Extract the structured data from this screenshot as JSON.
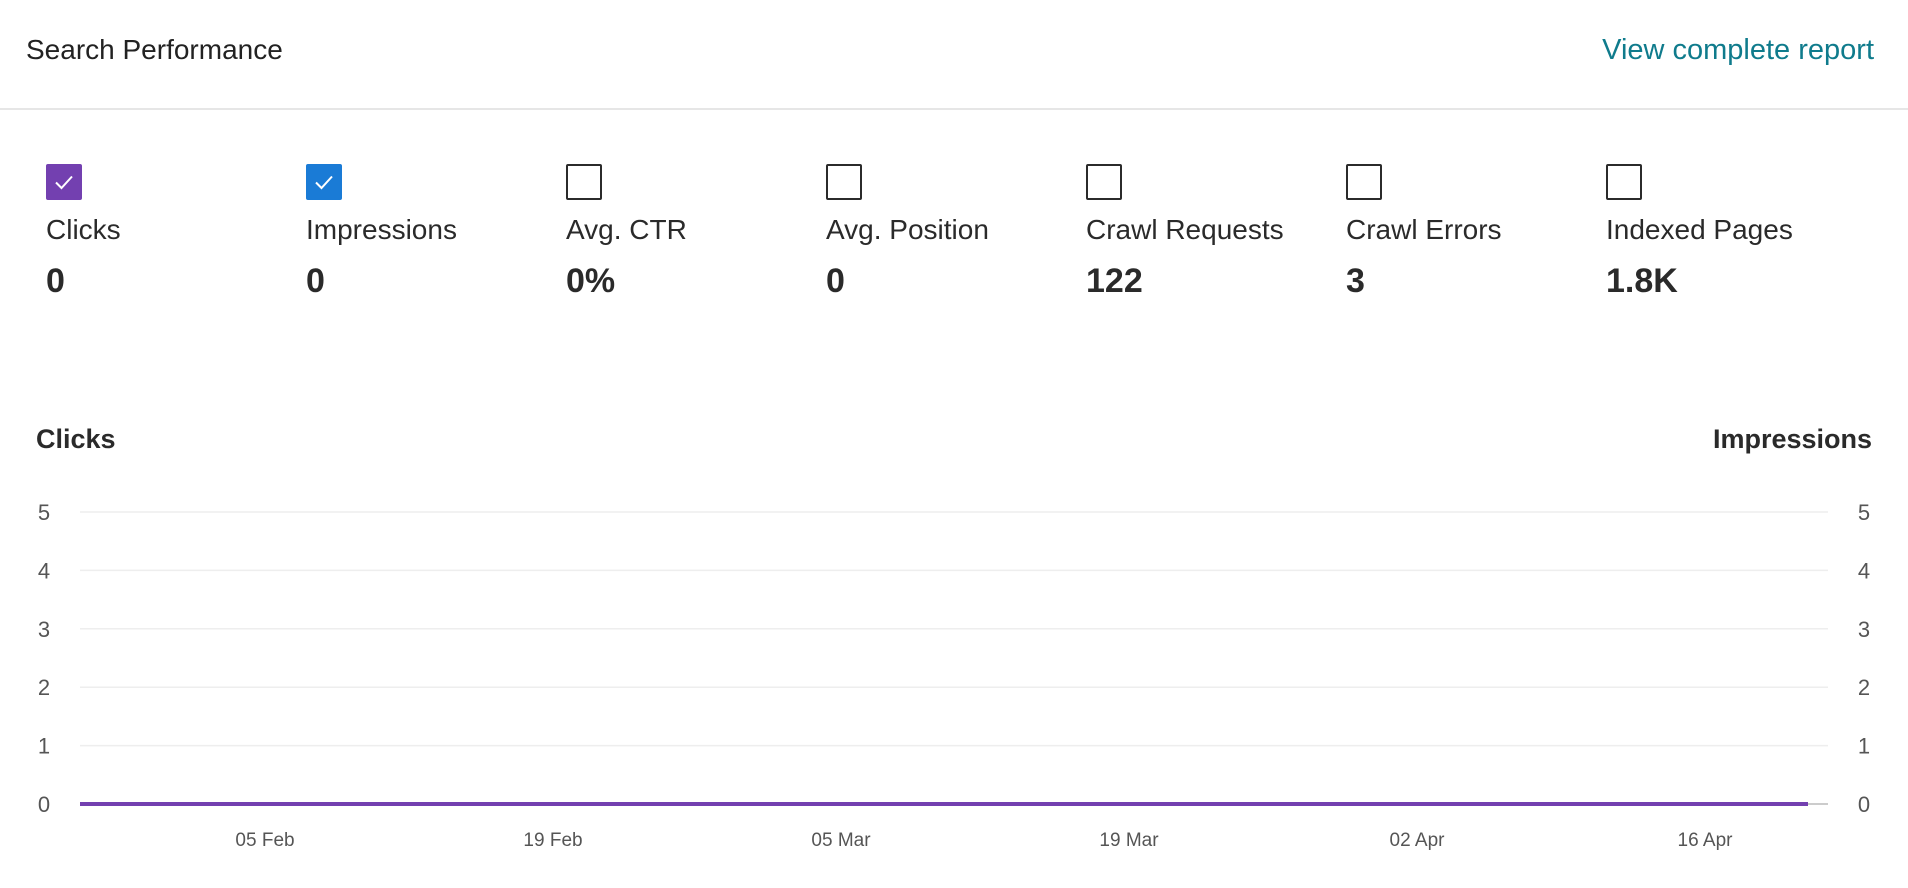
{
  "header": {
    "title": "Search Performance",
    "link_label": "View complete report"
  },
  "metrics": [
    {
      "label": "Clicks",
      "value": "0",
      "checked": true,
      "color": "#7340b0"
    },
    {
      "label": "Impressions",
      "value": "0",
      "checked": true,
      "color": "#1a7bd6"
    },
    {
      "label": "Avg. CTR",
      "value": "0%",
      "checked": false
    },
    {
      "label": "Avg. Position",
      "value": "0",
      "checked": false
    },
    {
      "label": "Crawl Requests",
      "value": "122",
      "checked": false
    },
    {
      "label": "Crawl Errors",
      "value": "3",
      "checked": false
    },
    {
      "label": "Indexed Pages",
      "value": "1.8K",
      "checked": false
    }
  ],
  "chart_data": {
    "type": "line",
    "ylabel_left": "Clicks",
    "ylabel_right": "Impressions",
    "ylim": [
      0,
      5
    ],
    "yticks": [
      "0",
      "1",
      "2",
      "3",
      "4",
      "5"
    ],
    "xticks": [
      "05 Feb",
      "19 Feb",
      "05 Mar",
      "19 Mar",
      "02 Apr",
      "16 Apr"
    ],
    "grid": true,
    "series": [
      {
        "name": "Clicks",
        "color": "#7340b0",
        "values": [
          0,
          0
        ]
      },
      {
        "name": "Impressions",
        "color": "#1a7bd6",
        "values": [
          0,
          0
        ]
      }
    ]
  }
}
